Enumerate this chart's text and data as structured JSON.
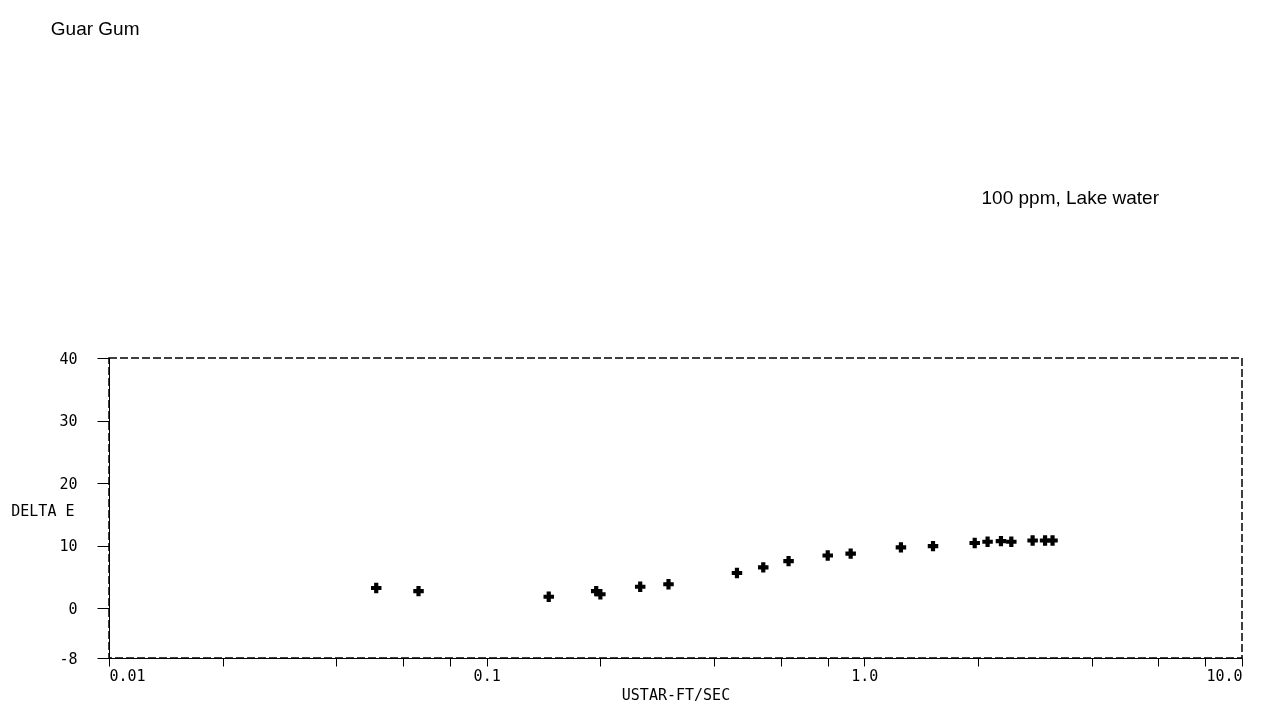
{
  "chart_data": {
    "type": "scatter",
    "title": "Guar Gum",
    "annotations": [
      "100 ppm, Lake water"
    ],
    "xlabel": "USTAR-FT/SEC",
    "ylabel": "DELTA E",
    "x": [
      0.051,
      0.066,
      0.146,
      0.195,
      0.2,
      0.255,
      0.303,
      0.46,
      0.54,
      0.63,
      0.8,
      0.92,
      1.25,
      1.52,
      1.96,
      2.12,
      2.3,
      2.45,
      2.79,
      3.01,
      3.15
    ],
    "series": [
      {
        "color": "#000000",
        "values": [
          3.2,
          2.7,
          1.8,
          2.7,
          2.2,
          3.4,
          3.8,
          5.6,
          6.5,
          7.5,
          8.4,
          8.7,
          9.7,
          9.9,
          10.4,
          10.6,
          10.7,
          10.6,
          10.8,
          10.8,
          10.8
        ]
      }
    ],
    "log": "x",
    "marker": "cross",
    "grid": false,
    "xlim": [
      0.01,
      10
    ],
    "ylim": [
      -8,
      40
    ],
    "xticks": [
      {
        "value": 0.01,
        "label": "0.01"
      },
      {
        "value": 0.02,
        "label": null
      },
      {
        "value": 0.04,
        "label": null
      },
      {
        "value": 0.06,
        "label": null
      },
      {
        "value": 0.08,
        "label": null
      },
      {
        "value": 0.1,
        "label": "0.1"
      },
      {
        "value": 0.2,
        "label": null
      },
      {
        "value": 0.4,
        "label": null
      },
      {
        "value": 0.6,
        "label": null
      },
      {
        "value": 0.8,
        "label": null
      },
      {
        "value": 1,
        "label": "1.0"
      },
      {
        "value": 2,
        "label": null
      },
      {
        "value": 4,
        "label": null
      },
      {
        "value": 6,
        "label": null
      },
      {
        "value": 8,
        "label": null
      },
      {
        "value": 10,
        "label": "10.0"
      }
    ],
    "yticks": [
      -8,
      0,
      10,
      20,
      30,
      40
    ]
  }
}
